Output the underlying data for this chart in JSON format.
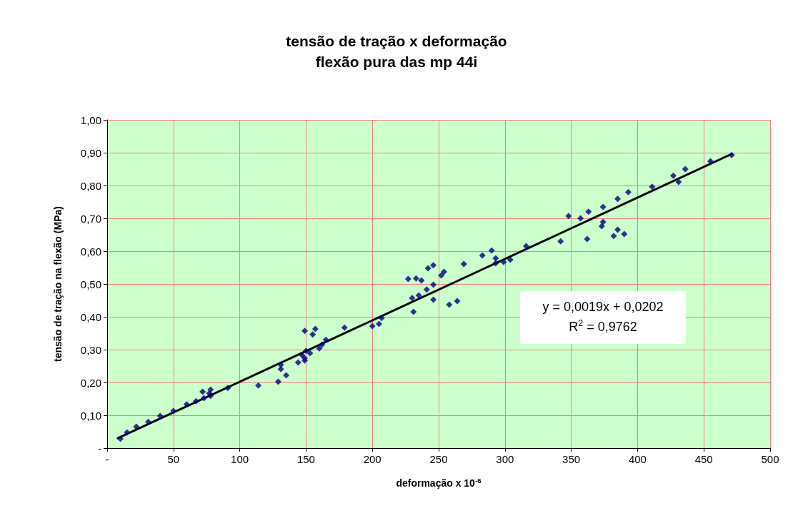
{
  "chart_data": {
    "type": "scatter",
    "title": "tensão de tração x deformação",
    "subtitle": "flexão pura das mp 44i",
    "xlabel": "deformação x 10$^{-6}$",
    "ylabel": "tensão de tração na flexão (MPa)",
    "annotations": [
      "y = 0,0019x + 0,0202",
      "R$^{2}$ = 0,9762"
    ],
    "xlim": [
      0,
      500
    ],
    "xticks": [
      {
        "value": 0,
        "label": "-"
      },
      50,
      100,
      150,
      200,
      250,
      300,
      350,
      400,
      450,
      500
    ],
    "ylim": [
      0,
      1
    ],
    "yticks": [
      {
        "value": 0,
        "label": "-"
      },
      {
        "value": 0.1,
        "label": "0,10"
      },
      {
        "value": 0.2,
        "label": "0,20"
      },
      {
        "value": 0.3,
        "label": "0,30"
      },
      {
        "value": 0.4,
        "label": "0,40"
      },
      {
        "value": 0.5,
        "label": "0,50"
      },
      {
        "value": 0.6,
        "label": "0,60"
      },
      {
        "value": 0.7,
        "label": "0,70"
      },
      {
        "value": 0.8,
        "label": "0,80"
      },
      {
        "value": 0.9,
        "label": "0,90"
      },
      {
        "value": 1,
        "label": "1,00"
      }
    ],
    "grid": true,
    "series": [
      {
        "color": "#000080",
        "marker": "diamond",
        "x": [
          10,
          15,
          22,
          31,
          40,
          50,
          60,
          67,
          72,
          73,
          77,
          78,
          78,
          91,
          114,
          129,
          131,
          131,
          135,
          144,
          147,
          149,
          149,
          150,
          149,
          153,
          155,
          157,
          160,
          162,
          165,
          179,
          200,
          205,
          207,
          227,
          231,
          230,
          233,
          235,
          237,
          241,
          242,
          246,
          246,
          246,
          252,
          254,
          258,
          264,
          269,
          283,
          290,
          293,
          293,
          299,
          304,
          316,
          342,
          348,
          357,
          362,
          363,
          373,
          374,
          374,
          382,
          385,
          385,
          390,
          393,
          411,
          427,
          431,
          436,
          455,
          471
        ],
        "values": [
          0.028,
          0.048,
          0.065,
          0.08,
          0.098,
          0.113,
          0.133,
          0.143,
          0.172,
          0.152,
          0.167,
          0.159,
          0.178,
          0.183,
          0.191,
          0.202,
          0.241,
          0.254,
          0.222,
          0.261,
          0.283,
          0.274,
          0.267,
          0.296,
          0.357,
          0.289,
          0.346,
          0.363,
          0.304,
          0.315,
          0.33,
          0.367,
          0.372,
          0.378,
          0.396,
          0.515,
          0.415,
          0.457,
          0.517,
          0.465,
          0.511,
          0.483,
          0.548,
          0.498,
          0.557,
          0.452,
          0.526,
          0.537,
          0.437,
          0.448,
          0.561,
          0.587,
          0.602,
          0.578,
          0.563,
          0.567,
          0.574,
          0.615,
          0.63,
          0.707,
          0.7,
          0.637,
          0.72,
          0.676,
          0.689,
          0.735,
          0.646,
          0.665,
          0.759,
          0.652,
          0.78,
          0.796,
          0.83,
          0.811,
          0.85,
          0.874,
          0.893
        ]
      },
      {
        "type": "line",
        "color": "#000000",
        "marker": "none",
        "line_style": "solid",
        "x": [
          8,
          471
        ],
        "values": [
          0.03,
          0.896
        ]
      }
    ]
  }
}
